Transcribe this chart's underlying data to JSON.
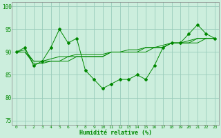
{
  "x": [
    0,
    1,
    2,
    3,
    4,
    5,
    6,
    7,
    8,
    9,
    10,
    11,
    12,
    13,
    14,
    15,
    16,
    17,
    18,
    19,
    20,
    21,
    22,
    23
  ],
  "series1": [
    90,
    91,
    87,
    88,
    91,
    95,
    92,
    93,
    86,
    84,
    82,
    83,
    84,
    84,
    85,
    84,
    87,
    91,
    92,
    92,
    94,
    96,
    94,
    93
  ],
  "series2": [
    90,
    90,
    88,
    88,
    88,
    88,
    88,
    89,
    89,
    89,
    89,
    90,
    90,
    90,
    90,
    91,
    91,
    91,
    92,
    92,
    92,
    92,
    93,
    93
  ],
  "series3": [
    90,
    90.5,
    88,
    88,
    88.5,
    89,
    89,
    89.5,
    89.5,
    89.5,
    89.5,
    90,
    90,
    90.5,
    90.5,
    91,
    91,
    91.5,
    92,
    92,
    92.5,
    93,
    93,
    93
  ],
  "series4": [
    90,
    90,
    87.5,
    87.5,
    88,
    88,
    89,
    89,
    89,
    89,
    89,
    90,
    90,
    90,
    90,
    90,
    91,
    91,
    92,
    92,
    92,
    93,
    93,
    93
  ],
  "line_color": "#008800",
  "bg_color": "#cceedd",
  "grid_color": "#99ccbb",
  "xlabel": "Humidité relative (%)",
  "ylim": [
    74,
    101
  ],
  "yticks": [
    75,
    80,
    85,
    90,
    95,
    100
  ],
  "xticks": [
    0,
    1,
    2,
    3,
    4,
    5,
    6,
    7,
    8,
    9,
    10,
    11,
    12,
    13,
    14,
    15,
    16,
    17,
    18,
    19,
    20,
    21,
    22,
    23
  ],
  "figsize": [
    3.2,
    2.0
  ],
  "dpi": 100
}
